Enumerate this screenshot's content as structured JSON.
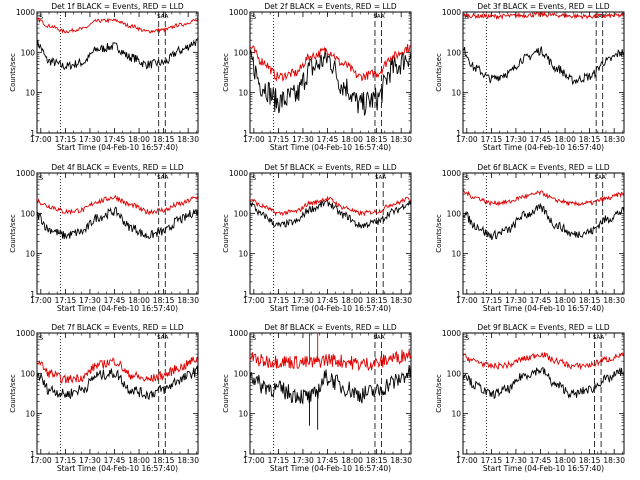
{
  "chart_data": [
    {
      "type": "line",
      "title": "Det 1f BLACK = Events, RED = LLD",
      "xlabel": "Start Time (04-Feb-10 16:57:40)",
      "ylabel": "Counts/sec",
      "x_ticks": [
        "17:00",
        "17:15",
        "17:30",
        "17:45",
        "18:00",
        "18:15",
        "18:30"
      ],
      "y_ticks": [
        "1",
        "10",
        "100",
        "1000"
      ],
      "y_scale": "log",
      "xlim": [
        "16:57:40",
        "18:36"
      ],
      "ylim": [
        1,
        1000
      ],
      "corner_marks": [
        "S",
        "SAA"
      ],
      "vlines_dotted": [
        "17:12"
      ],
      "vlines_dashed": [
        "18:12",
        "18:16"
      ],
      "series": [
        {
          "name": "Events",
          "color": "#000000",
          "x": [
            "16:58",
            "17:05",
            "17:15",
            "17:25",
            "17:35",
            "17:45",
            "17:55",
            "18:05",
            "18:15",
            "18:25",
            "18:35"
          ],
          "values": [
            160,
            60,
            45,
            55,
            120,
            140,
            75,
            50,
            55,
            110,
            180
          ],
          "noise": 0.05
        },
        {
          "name": "LLD",
          "color": "#e00000",
          "x": [
            "16:58",
            "17:05",
            "17:15",
            "17:25",
            "17:35",
            "17:45",
            "17:55",
            "18:05",
            "18:15",
            "18:25",
            "18:35"
          ],
          "values": [
            650,
            450,
            330,
            380,
            600,
            620,
            450,
            330,
            360,
            480,
            620
          ],
          "noise": 0.02
        }
      ]
    },
    {
      "type": "line",
      "title": "Det 2f BLACK = Events, RED = LLD",
      "xlabel": "Start Time (04-Feb-10 16:57:40)",
      "ylabel": "Counts/sec",
      "x_ticks": [
        "17:00",
        "17:15",
        "17:30",
        "17:45",
        "18:00",
        "18:15",
        "18:30"
      ],
      "y_ticks": [
        "1",
        "10",
        "100",
        "1000"
      ],
      "y_scale": "log",
      "xlim": [
        "16:57:40",
        "18:36"
      ],
      "ylim": [
        1,
        1000
      ],
      "corner_marks": [
        "S",
        "SAA"
      ],
      "vlines_dotted": [
        "17:12"
      ],
      "vlines_dashed": [
        "18:14",
        "18:18"
      ],
      "series": [
        {
          "name": "Events",
          "color": "#000000",
          "x": [
            "16:58",
            "17:05",
            "17:15",
            "17:25",
            "17:35",
            "17:45",
            "17:55",
            "18:05",
            "18:15",
            "18:25",
            "18:35"
          ],
          "values": [
            60,
            15,
            6,
            8,
            40,
            70,
            15,
            5,
            7,
            40,
            80
          ],
          "noise": 0.14
        },
        {
          "name": "LLD",
          "color": "#e00000",
          "x": [
            "16:58",
            "17:05",
            "17:15",
            "17:25",
            "17:35",
            "17:45",
            "17:55",
            "18:05",
            "18:15",
            "18:25",
            "18:35"
          ],
          "values": [
            130,
            60,
            25,
            30,
            80,
            110,
            50,
            25,
            30,
            80,
            130
          ],
          "noise": 0.05
        }
      ]
    },
    {
      "type": "line",
      "title": "Det 3f BLACK = Events, RED = LLD",
      "xlabel": "Start Time (04-Feb-10 16:57:40)",
      "ylabel": "Counts/sec",
      "x_ticks": [
        "17:00",
        "17:15",
        "17:30",
        "17:45",
        "18:00",
        "18:15",
        "18:30"
      ],
      "y_ticks": [
        "1",
        "10",
        "100",
        "1000"
      ],
      "y_scale": "log",
      "xlim": [
        "16:57:40",
        "18:36"
      ],
      "ylim": [
        1,
        1000
      ],
      "corner_marks": [
        "S",
        "SAA"
      ],
      "vlines_dotted": [
        "17:12"
      ],
      "vlines_dashed": [
        "18:19",
        "18:23"
      ],
      "series": [
        {
          "name": "Events",
          "color": "#000000",
          "x": [
            "16:58",
            "17:05",
            "17:15",
            "17:25",
            "17:35",
            "17:45",
            "17:55",
            "18:05",
            "18:15",
            "18:25",
            "18:35"
          ],
          "values": [
            110,
            40,
            22,
            30,
            70,
            110,
            40,
            20,
            25,
            60,
            100
          ],
          "noise": 0.05
        },
        {
          "name": "LLD",
          "color": "#e00000",
          "x": [
            "16:58",
            "17:05",
            "17:15",
            "17:25",
            "17:35",
            "17:45",
            "17:55",
            "18:05",
            "18:15",
            "18:25",
            "18:35"
          ],
          "values": [
            820,
            800,
            780,
            790,
            830,
            860,
            830,
            790,
            780,
            800,
            820
          ],
          "noise": 0.025
        }
      ]
    },
    {
      "type": "line",
      "title": "Det 4f BLACK = Events, RED = LLD",
      "xlabel": "Start Time (04-Feb-10 16:57:40)",
      "ylabel": "Counts/sec",
      "x_ticks": [
        "17:00",
        "17:15",
        "17:30",
        "17:45",
        "18:00",
        "18:15",
        "18:30"
      ],
      "y_ticks": [
        "1",
        "10",
        "100",
        "1000"
      ],
      "y_scale": "log",
      "xlim": [
        "16:57:40",
        "18:36"
      ],
      "ylim": [
        1,
        1000
      ],
      "corner_marks": [
        "S",
        "SAA"
      ],
      "vlines_dotted": [
        "17:12"
      ],
      "vlines_dashed": [
        "18:12",
        "18:16"
      ],
      "series": [
        {
          "name": "Events",
          "color": "#000000",
          "x": [
            "16:58",
            "17:05",
            "17:15",
            "17:25",
            "17:35",
            "17:45",
            "17:55",
            "18:05",
            "18:15",
            "18:25",
            "18:35"
          ],
          "values": [
            90,
            40,
            28,
            35,
            80,
            110,
            45,
            28,
            35,
            70,
            110
          ],
          "noise": 0.05
        },
        {
          "name": "LLD",
          "color": "#e00000",
          "x": [
            "16:58",
            "17:05",
            "17:15",
            "17:25",
            "17:35",
            "17:45",
            "17:55",
            "18:05",
            "18:15",
            "18:25",
            "18:35"
          ],
          "values": [
            200,
            150,
            110,
            120,
            200,
            250,
            160,
            110,
            120,
            170,
            240
          ],
          "noise": 0.03
        }
      ]
    },
    {
      "type": "line",
      "title": "Det 5f BLACK = Events, RED = LLD",
      "xlabel": "Start Time (04-Feb-10 16:57:40)",
      "ylabel": "Counts/sec",
      "x_ticks": [
        "17:00",
        "17:15",
        "17:30",
        "17:45",
        "18:00",
        "18:15",
        "18:30"
      ],
      "y_ticks": [
        "1",
        "10",
        "100",
        "1000"
      ],
      "y_scale": "log",
      "xlim": [
        "16:57:40",
        "18:36"
      ],
      "ylim": [
        1,
        1000
      ],
      "corner_marks": [
        "S",
        "SAA"
      ],
      "vlines_dotted": [
        "17:12"
      ],
      "vlines_dashed": [
        "18:15",
        "18:19"
      ],
      "series": [
        {
          "name": "Events",
          "color": "#000000",
          "x": [
            "16:58",
            "17:05",
            "17:15",
            "17:25",
            "17:35",
            "17:45",
            "17:55",
            "18:05",
            "18:15",
            "18:25",
            "18:35"
          ],
          "values": [
            170,
            90,
            50,
            60,
            130,
            180,
            90,
            50,
            60,
            110,
            180
          ],
          "noise": 0.04
        },
        {
          "name": "LLD",
          "color": "#e00000",
          "x": [
            "16:58",
            "17:05",
            "17:15",
            "17:25",
            "17:35",
            "17:45",
            "17:55",
            "18:05",
            "18:15",
            "18:25",
            "18:35"
          ],
          "values": [
            220,
            150,
            100,
            110,
            180,
            230,
            140,
            100,
            110,
            170,
            230
          ],
          "noise": 0.025
        }
      ]
    },
    {
      "type": "line",
      "title": "Det 6f BLACK = Events, RED = LLD",
      "xlabel": "Start Time (04-Feb-10 16:57:40)",
      "ylabel": "Counts/sec",
      "x_ticks": [
        "17:00",
        "17:15",
        "17:30",
        "17:45",
        "18:00",
        "18:15",
        "18:30"
      ],
      "y_ticks": [
        "1",
        "10",
        "100",
        "1000"
      ],
      "y_scale": "log",
      "xlim": [
        "16:57:40",
        "18:36"
      ],
      "ylim": [
        1,
        1000
      ],
      "corner_marks": [
        "S",
        "SAA"
      ],
      "vlines_dotted": [
        "17:12"
      ],
      "vlines_dashed": [
        "18:19",
        "18:23"
      ],
      "series": [
        {
          "name": "Events",
          "color": "#000000",
          "x": [
            "16:58",
            "17:05",
            "17:15",
            "17:25",
            "17:35",
            "17:45",
            "17:55",
            "18:05",
            "18:15",
            "18:25",
            "18:35"
          ],
          "values": [
            100,
            50,
            28,
            38,
            90,
            130,
            50,
            30,
            35,
            70,
            110
          ],
          "noise": 0.05
        },
        {
          "name": "LLD",
          "color": "#e00000",
          "x": [
            "16:58",
            "17:05",
            "17:15",
            "17:25",
            "17:35",
            "17:45",
            "17:55",
            "18:05",
            "18:15",
            "18:25",
            "18:35"
          ],
          "values": [
            330,
            250,
            180,
            190,
            260,
            320,
            210,
            170,
            180,
            230,
            300
          ],
          "noise": 0.025
        }
      ]
    },
    {
      "type": "line",
      "title": "Det 7f BLACK = Events, RED = LLD",
      "xlabel": "Start Time (04-Feb-10 16:57:40)",
      "ylabel": "Counts/sec",
      "x_ticks": [
        "17:00",
        "17:15",
        "17:30",
        "17:45",
        "18:00",
        "18:15",
        "18:30"
      ],
      "y_ticks": [
        "1",
        "10",
        "100",
        "1000"
      ],
      "y_scale": "log",
      "xlim": [
        "16:57:40",
        "18:36"
      ],
      "ylim": [
        1,
        1000
      ],
      "corner_marks": [
        "S",
        "SAA"
      ],
      "vlines_dotted": [
        "17:12"
      ],
      "vlines_dashed": [
        "18:12",
        "18:16"
      ],
      "series": [
        {
          "name": "Events",
          "color": "#000000",
          "x": [
            "16:58",
            "17:05",
            "17:15",
            "17:25",
            "17:35",
            "17:45",
            "17:55",
            "18:05",
            "18:15",
            "18:25",
            "18:35"
          ],
          "values": [
            90,
            40,
            30,
            40,
            90,
            100,
            40,
            30,
            40,
            70,
            110
          ],
          "noise": 0.06
        },
        {
          "name": "LLD",
          "color": "#e00000",
          "x": [
            "16:58",
            "17:05",
            "17:15",
            "17:25",
            "17:35",
            "17:45",
            "17:55",
            "18:05",
            "18:15",
            "18:25",
            "18:35"
          ],
          "values": [
            200,
            100,
            70,
            80,
            160,
            200,
            90,
            70,
            90,
            140,
            220
          ],
          "noise": 0.05
        }
      ]
    },
    {
      "type": "line",
      "title": "Det 8f BLACK = Events, RED = LLD",
      "xlabel": "Start Time (04-Feb-10 16:57:40)",
      "ylabel": "Counts/sec",
      "x_ticks": [
        "17:00",
        "17:15",
        "17:30",
        "17:45",
        "18:00",
        "18:15",
        "18:30"
      ],
      "y_ticks": [
        "1",
        "10",
        "100",
        "1000"
      ],
      "y_scale": "log",
      "xlim": [
        "16:57:40",
        "18:36"
      ],
      "ylim": [
        1,
        1000
      ],
      "corner_marks": [
        "S",
        "SAA"
      ],
      "vlines_dotted": [
        "17:12"
      ],
      "vlines_dashed": [
        "18:14",
        "18:18"
      ],
      "spikes": [
        {
          "x": "17:34",
          "red_to": 1000,
          "black_to": 5
        },
        {
          "x": "17:39",
          "red_to": 1000,
          "black_to": 4
        }
      ],
      "series": [
        {
          "name": "Events",
          "color": "#000000",
          "x": [
            "16:58",
            "17:05",
            "17:15",
            "17:25",
            "17:35",
            "17:45",
            "17:55",
            "18:05",
            "18:15",
            "18:25",
            "18:35"
          ],
          "values": [
            90,
            50,
            40,
            30,
            25,
            80,
            45,
            30,
            35,
            60,
            100
          ],
          "noise": 0.1
        },
        {
          "name": "LLD",
          "color": "#e00000",
          "x": [
            "16:58",
            "17:05",
            "17:15",
            "17:25",
            "17:35",
            "17:45",
            "17:55",
            "18:05",
            "18:15",
            "18:25",
            "18:35"
          ],
          "values": [
            250,
            200,
            200,
            190,
            180,
            220,
            200,
            170,
            180,
            240,
            300
          ],
          "noise": 0.08
        }
      ]
    },
    {
      "type": "line",
      "title": "Det 9f BLACK = Events, RED = LLD",
      "xlabel": "Start Time (04-Feb-10 16:57:40)",
      "ylabel": "Counts/sec",
      "x_ticks": [
        "17:00",
        "17:15",
        "17:30",
        "17:45",
        "18:00",
        "18:15",
        "18:30"
      ],
      "y_ticks": [
        "1",
        "10",
        "100",
        "1000"
      ],
      "y_scale": "log",
      "xlim": [
        "16:57:40",
        "18:36"
      ],
      "ylim": [
        1,
        1000
      ],
      "corner_marks": [
        "S",
        "SAA"
      ],
      "vlines_dotted": [
        "17:12"
      ],
      "vlines_dashed": [
        "18:18",
        "18:22"
      ],
      "series": [
        {
          "name": "Events",
          "color": "#000000",
          "x": [
            "16:58",
            "17:05",
            "17:15",
            "17:25",
            "17:35",
            "17:45",
            "17:55",
            "18:05",
            "18:15",
            "18:25",
            "18:35"
          ],
          "values": [
            100,
            50,
            30,
            40,
            90,
            120,
            50,
            30,
            40,
            70,
            110
          ],
          "noise": 0.05
        },
        {
          "name": "LLD",
          "color": "#e00000",
          "x": [
            "16:58",
            "17:05",
            "17:15",
            "17:25",
            "17:35",
            "17:45",
            "17:55",
            "18:05",
            "18:15",
            "18:25",
            "18:35"
          ],
          "values": [
            260,
            200,
            150,
            160,
            230,
            300,
            200,
            150,
            160,
            220,
            280
          ],
          "noise": 0.035
        }
      ]
    }
  ]
}
